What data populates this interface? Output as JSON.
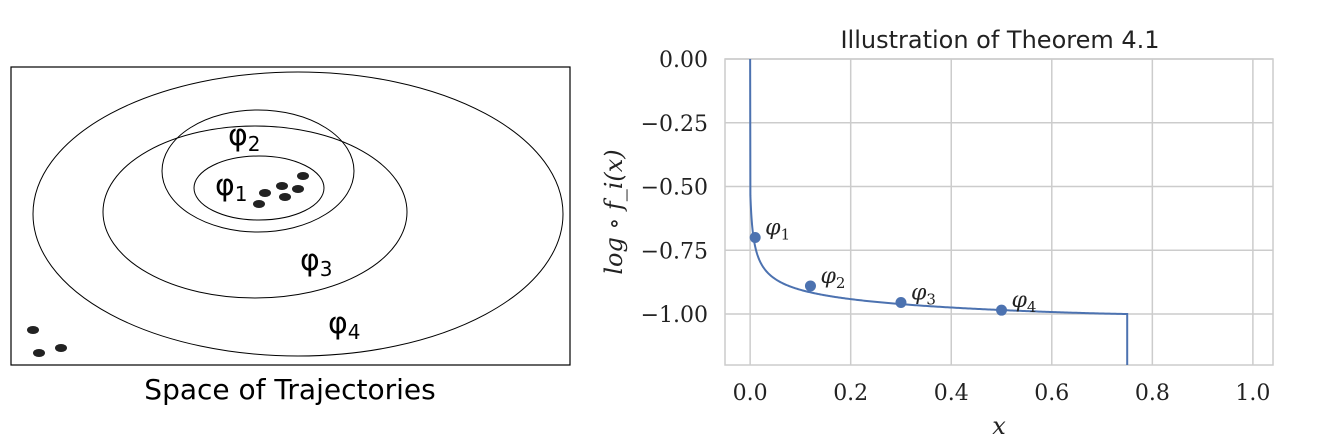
{
  "left_panel": {
    "caption": "Space of Trajectories",
    "regions": [
      {
        "name": "φ",
        "sub": "1"
      },
      {
        "name": "φ",
        "sub": "2"
      },
      {
        "name": "φ",
        "sub": "3"
      },
      {
        "name": "φ",
        "sub": "4"
      }
    ]
  },
  "chart_data": {
    "type": "line",
    "title": "Illustration of Theorem 4.1",
    "xlabel": "x",
    "ylabel": "log ∘ f_i(x)",
    "xlim": [
      -0.05,
      1.04
    ],
    "ylim": [
      -1.2,
      0.0
    ],
    "xticks": [
      0.0,
      0.2,
      0.4,
      0.6,
      0.8,
      1.0
    ],
    "xtick_labels": [
      "0.0",
      "0.2",
      "0.4",
      "0.6",
      "0.8",
      "1.0"
    ],
    "yticks": [
      0.0,
      -0.25,
      -0.5,
      -0.75,
      -1.0
    ],
    "ytick_labels": [
      "0.00",
      "−0.25",
      "−0.50",
      "−0.75",
      "−1.00"
    ],
    "grid": true,
    "line_color": "#4c72b0",
    "curve": {
      "x_start": 0.0,
      "x_end": 0.75,
      "y_end": -1.0
    },
    "points": [
      {
        "label": "φ",
        "sub": "1",
        "x": 0.01,
        "y": -0.7
      },
      {
        "label": "φ",
        "sub": "2",
        "x": 0.12,
        "y": -0.89
      },
      {
        "label": "φ",
        "sub": "3",
        "x": 0.3,
        "y": -0.955
      },
      {
        "label": "φ",
        "sub": "4",
        "x": 0.5,
        "y": -0.985
      }
    ]
  }
}
